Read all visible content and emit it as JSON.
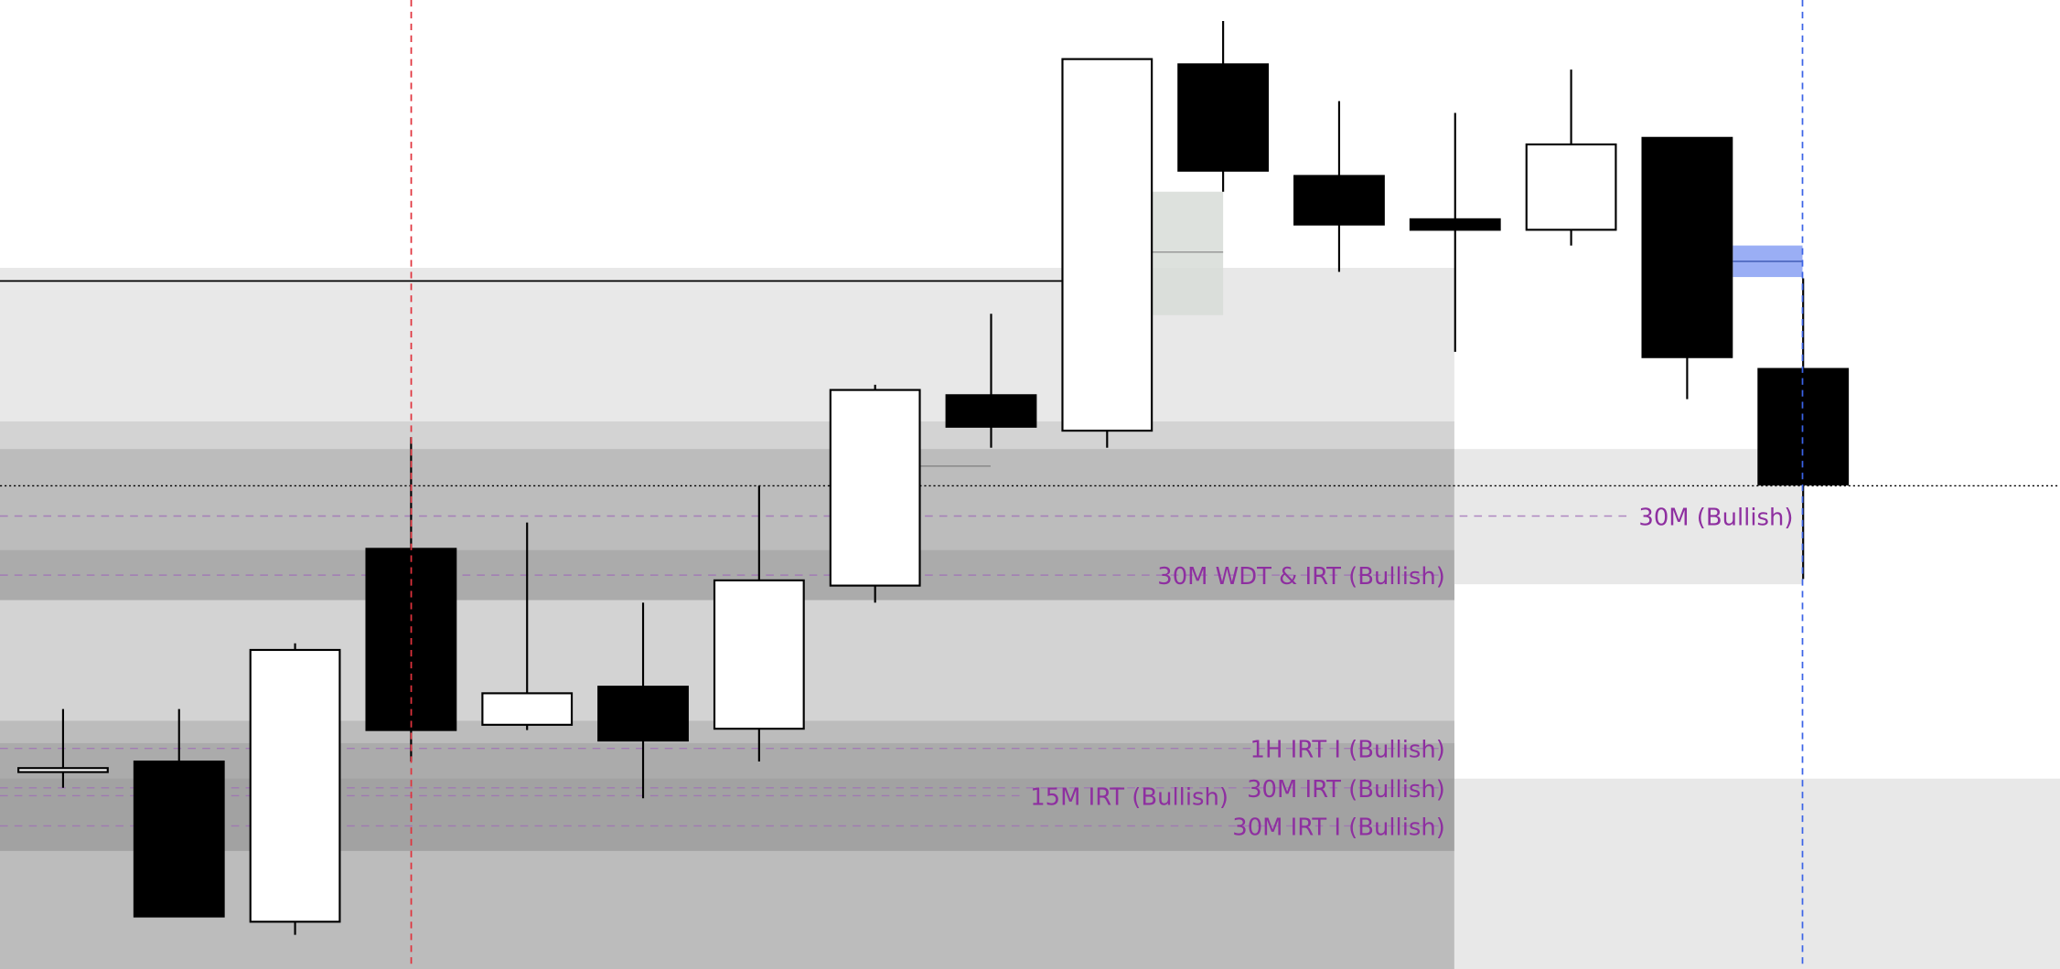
{
  "chart_data": {
    "type": "candlestick",
    "title": "",
    "xlabel": "",
    "ylabel": "",
    "ylim": [
      0,
      73.8
    ],
    "grid": false,
    "colors": {
      "bullish_body": "#ffffff",
      "bearish_body": "#000000",
      "label": "#8e2fa0",
      "marker_red": "#e0323c",
      "marker_blue": "#3b63e6",
      "blue_zone": "#9aaef5"
    },
    "candles": [
      {
        "o": 15.0,
        "h": 19.8,
        "l": 13.8,
        "c": 15.3
      },
      {
        "o": 15.8,
        "h": 19.8,
        "l": 4.0,
        "c": 4.0
      },
      {
        "o": 3.6,
        "h": 24.8,
        "l": 2.6,
        "c": 24.3
      },
      {
        "o": 32.0,
        "h": 40.5,
        "l": 15.8,
        "c": 18.2
      },
      {
        "o": 18.6,
        "h": 34.0,
        "l": 18.2,
        "c": 21.0
      },
      {
        "o": 21.5,
        "h": 27.9,
        "l": 13.0,
        "c": 17.4
      },
      {
        "o": 18.3,
        "h": 36.8,
        "l": 15.8,
        "c": 29.6
      },
      {
        "o": 29.2,
        "h": 44.5,
        "l": 27.9,
        "c": 44.1
      },
      {
        "o": 43.7,
        "h": 49.9,
        "l": 39.7,
        "c": 41.3
      },
      {
        "o": 41.0,
        "h": 69.3,
        "l": 39.7,
        "c": 69.3
      },
      {
        "o": 68.9,
        "h": 72.2,
        "l": 59.2,
        "c": 60.8
      },
      {
        "o": 60.4,
        "h": 66.1,
        "l": 53.1,
        "c": 56.7
      },
      {
        "o": 57.1,
        "h": 65.2,
        "l": 47.0,
        "c": 56.3
      },
      {
        "o": 56.3,
        "h": 68.5,
        "l": 55.1,
        "c": 62.8
      },
      {
        "o": 63.3,
        "h": 63.3,
        "l": 43.4,
        "c": 46.6
      },
      {
        "o": 45.7,
        "h": 52.6,
        "l": 29.7,
        "c": 36.9
      }
    ],
    "reference_levels": [
      {
        "label": "30M (Bullish)",
        "price": 34.5
      },
      {
        "label": "30M WDT & IRT (Bullish)",
        "price": 30.0
      },
      {
        "label": "1H IRT I (Bullish)",
        "price": 16.8
      },
      {
        "label": "30M IRT (Bullish)",
        "price": 13.8
      },
      {
        "label": "15M IRT (Bullish)",
        "price": 13.2
      },
      {
        "label": "30M IRT I (Bullish)",
        "price": 10.9
      }
    ]
  }
}
